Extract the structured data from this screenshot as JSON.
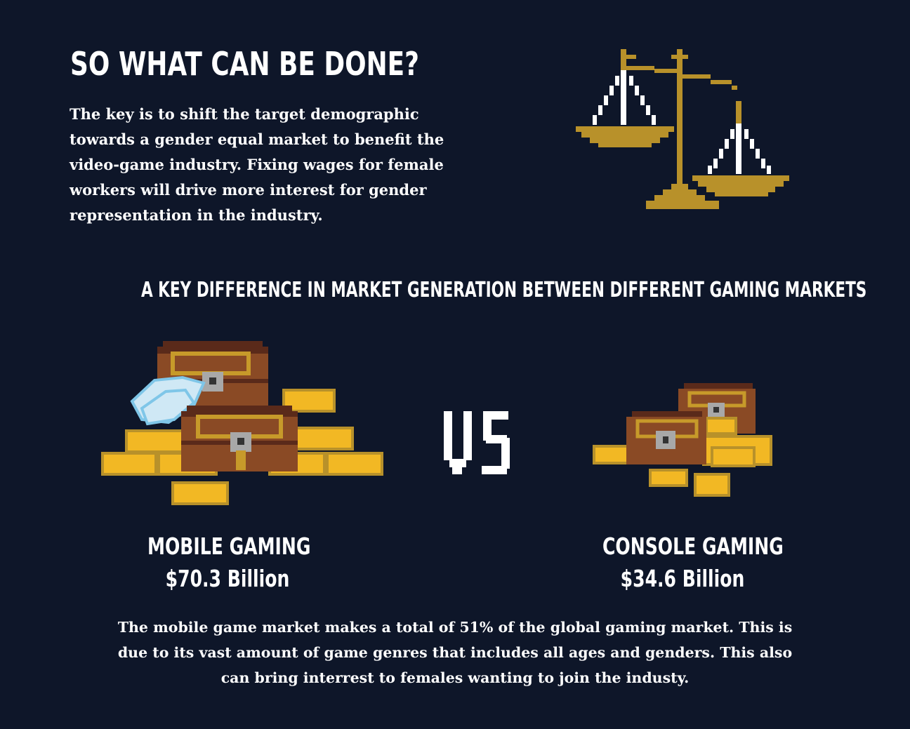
{
  "heading": "SO WHAT CAN BE DONE?",
  "intro": "The key is to shift the target demographic towards a gender equal market to benefit the video-game industry. Fixing wages for female workers will drive more interest for gender representation in the industry.",
  "subheading": "A KEY DIFFERENCE IN MARKET GENERATION BETWEEN DIFFERENT GAMING MARKETS",
  "versus": "VS",
  "markets": {
    "mobile": {
      "name": "MOBILE GAMING",
      "value": "$70.3 Billion"
    },
    "console": {
      "name": "CONSOLE GAMING",
      "value": "$34.6 Billion"
    }
  },
  "footer": "The mobile game market makes a total of 51% of the global gaming market.  This is due to its vast amount of game genres that includes all ages and genders.  This also can bring interrest to females wanting to join the industy.",
  "icons": {
    "scale": "balance-scale-icon",
    "mobile_treasure": "treasure-pile-large-icon",
    "console_treasure": "treasure-pile-small-icon"
  },
  "colors": {
    "background": "#0e1629",
    "text": "#ffffff",
    "gold": "#b8912a",
    "gold_bar": "#f2b824",
    "chest_wood": "#8a4a25",
    "chest_dark": "#5a2a1a",
    "diamond": "#cfe8f5"
  }
}
